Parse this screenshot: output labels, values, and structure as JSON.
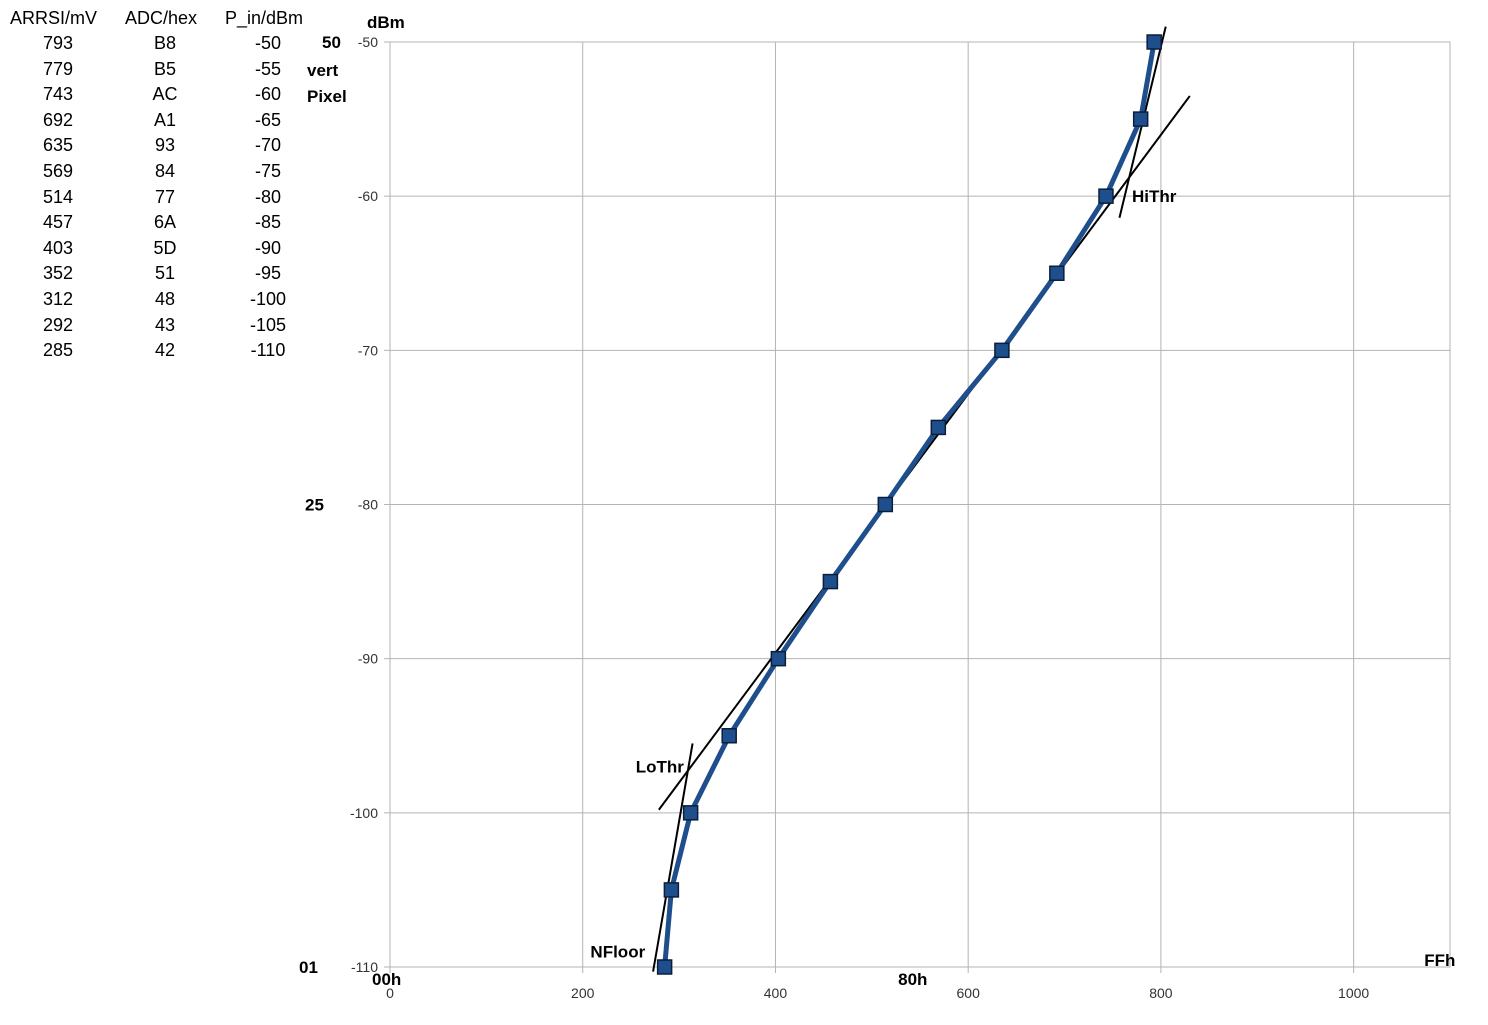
{
  "table": {
    "headers": [
      "ARRSI/mV",
      "ADC/hex",
      "P_in/dBm"
    ],
    "rows": [
      [
        "793",
        "B8",
        "-50"
      ],
      [
        "779",
        "B5",
        "-55"
      ],
      [
        "743",
        "AC",
        "-60"
      ],
      [
        "692",
        "A1",
        "-65"
      ],
      [
        "635",
        "93",
        "-70"
      ],
      [
        "569",
        "84",
        "-75"
      ],
      [
        "514",
        "77",
        "-80"
      ],
      [
        "457",
        "6A",
        "-85"
      ],
      [
        "403",
        "5D",
        "-90"
      ],
      [
        "352",
        "51",
        "-95"
      ],
      [
        "312",
        "48",
        "-100"
      ],
      [
        "292",
        "43",
        "-105"
      ],
      [
        "285",
        "42",
        "-110"
      ]
    ]
  },
  "chart_data": {
    "type": "line",
    "title": "",
    "ylabel": "dBm",
    "xlabel": "",
    "xlim": [
      0,
      1100
    ],
    "ylim": [
      -110,
      -50
    ],
    "xticks": [
      0,
      200,
      400,
      600,
      800,
      1000
    ],
    "yticks": [
      -50,
      -60,
      -70,
      -80,
      -90,
      -100,
      -110
    ],
    "grid": true,
    "series_color": "#1f4e8c",
    "series": [
      {
        "marker": "square",
        "x": [
          793,
          779,
          743,
          692,
          635,
          569,
          514,
          457,
          403,
          352,
          312,
          292,
          285
        ],
        "y": [
          -50,
          -55,
          -60,
          -65,
          -70,
          -75,
          -80,
          -85,
          -90,
          -95,
          -100,
          -105,
          -110
        ]
      }
    ],
    "fit_lines": [
      {
        "x": [
          805,
          757
        ],
        "y": [
          -49,
          -61.4
        ]
      },
      {
        "x": [
          830,
          279
        ],
        "y": [
          -53.5,
          -99.8
        ]
      },
      {
        "x": [
          314,
          273
        ],
        "y": [
          -95.5,
          -110.3
        ]
      }
    ],
    "annotations": [
      {
        "text": "HiThr",
        "x": 770,
        "y": -60
      },
      {
        "text": "LoThr",
        "x": 255,
        "y": -97
      },
      {
        "text": "NFloor",
        "x": 208,
        "y": -109
      }
    ],
    "secondary_axis_labels": {
      "left": [
        {
          "text": "50",
          "y": -50
        },
        {
          "text": "vert",
          "y": -51.8
        },
        {
          "text": "Pixel",
          "y": -53.5
        },
        {
          "text": "25",
          "y": -80
        },
        {
          "text": "01",
          "y": -110
        }
      ],
      "bottom": [
        {
          "text": "00h",
          "x": 0
        },
        {
          "text": "80h",
          "x": 546
        },
        {
          "text": "FFh",
          "x": 1092
        }
      ]
    }
  }
}
